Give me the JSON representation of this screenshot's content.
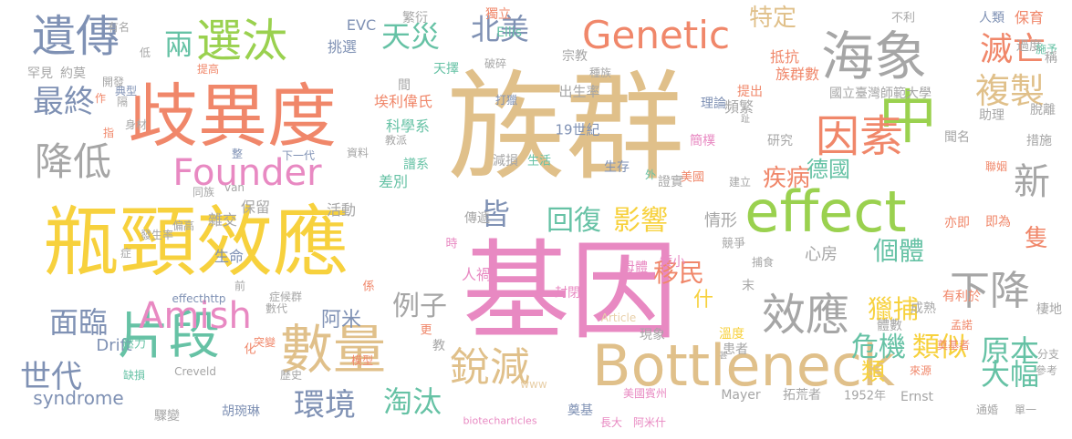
{
  "colors": {
    "tan": "#e0c08a",
    "coral": "#f0876a",
    "yellow": "#f7d13d",
    "green": "#9ad14f",
    "pink": "#e889c2",
    "gray": "#a6a6a6",
    "teal": "#66c2a5",
    "slate": "#7f91b4",
    "mint": "#a6d8c2",
    "beige": "#e8cfa8"
  },
  "words": [
    {
      "text": "族群",
      "color": "tan"
    },
    {
      "text": "基因",
      "color": "pink"
    },
    {
      "text": "瓶頸效應",
      "color": "yellow"
    },
    {
      "text": "歧異度",
      "color": "coral"
    },
    {
      "text": "effect",
      "color": "green"
    },
    {
      "text": "Bottleneck",
      "color": "tan"
    },
    {
      "text": "數量",
      "color": "tan"
    },
    {
      "text": "海象",
      "color": "gray"
    },
    {
      "text": "中",
      "color": "green"
    },
    {
      "text": "因素",
      "color": "coral"
    },
    {
      "text": "Genetic",
      "color": "coral"
    },
    {
      "text": "效應",
      "color": "gray"
    },
    {
      "text": "片段",
      "color": "teal"
    },
    {
      "text": "Founder",
      "color": "pink"
    },
    {
      "text": "選汰",
      "color": "green"
    },
    {
      "text": "遺傳",
      "color": "slate"
    },
    {
      "text": "降低",
      "color": "gray"
    },
    {
      "text": "Amish",
      "color": "pink"
    },
    {
      "text": "銳減",
      "color": "tan"
    },
    {
      "text": "下降",
      "color": "gray"
    },
    {
      "text": "複製",
      "color": "tan"
    },
    {
      "text": "最終",
      "color": "slate"
    },
    {
      "text": "新",
      "color": "gray"
    },
    {
      "text": "滅亡",
      "color": "coral"
    },
    {
      "text": "兩",
      "color": "teal"
    },
    {
      "text": "天災",
      "color": "teal"
    },
    {
      "text": "北美",
      "color": "slate"
    },
    {
      "text": "特定",
      "color": "tan"
    },
    {
      "text": "世代",
      "color": "slate"
    },
    {
      "text": "環境",
      "color": "slate"
    },
    {
      "text": "面臨",
      "color": "slate"
    },
    {
      "text": "淘汰",
      "color": "teal"
    },
    {
      "text": "大幅",
      "color": "teal"
    },
    {
      "text": "原本",
      "color": "teal"
    },
    {
      "text": "危機",
      "color": "teal"
    },
    {
      "text": "類似",
      "color": "yellow"
    },
    {
      "text": "影響",
      "color": "yellow"
    },
    {
      "text": "回復",
      "color": "teal"
    },
    {
      "text": "皆",
      "color": "slate"
    },
    {
      "text": "例子",
      "color": "gray"
    },
    {
      "text": "疾病",
      "color": "coral"
    },
    {
      "text": "德國",
      "color": "teal"
    },
    {
      "text": "獵捕",
      "color": "yellow"
    },
    {
      "text": "個體",
      "color": "teal"
    },
    {
      "text": "移民",
      "color": "coral"
    },
    {
      "text": "隻",
      "color": "coral"
    },
    {
      "text": "阿米",
      "color": "slate"
    },
    {
      "text": "syndrome",
      "color": "slate"
    },
    {
      "text": "Drift",
      "color": "slate"
    },
    {
      "text": "類",
      "color": "yellow"
    },
    {
      "text": "情形",
      "color": "gray"
    },
    {
      "text": "什",
      "color": "yellow"
    },
    {
      "text": "心房",
      "color": "gray"
    },
    {
      "text": "活動",
      "color": "gray"
    },
    {
      "text": "雜交",
      "color": "gray"
    },
    {
      "text": "生命",
      "color": "slate"
    },
    {
      "text": "保留",
      "color": "gray"
    },
    {
      "text": "傳遞",
      "color": "gray"
    },
    {
      "text": "差別",
      "color": "teal"
    },
    {
      "text": "譜系",
      "color": "teal"
    },
    {
      "text": "科學系",
      "color": "teal"
    },
    {
      "text": "19世紀",
      "color": "slate"
    },
    {
      "text": "出生率",
      "color": "gray"
    },
    {
      "text": "國立臺灣師範大學",
      "color": "gray"
    },
    {
      "text": "頻繁",
      "color": "gray"
    },
    {
      "text": "助理",
      "color": "gray"
    },
    {
      "text": "研究",
      "color": "gray"
    },
    {
      "text": "簡樸",
      "color": "pink"
    },
    {
      "text": "理論",
      "color": "slate"
    },
    {
      "text": "族群數",
      "color": "coral"
    },
    {
      "text": "抵抗",
      "color": "coral"
    },
    {
      "text": "提出",
      "color": "coral"
    },
    {
      "text": "人類",
      "color": "slate"
    },
    {
      "text": "保育",
      "color": "coral"
    },
    {
      "text": "過度",
      "color": "gray"
    },
    {
      "text": "施予",
      "color": "teal"
    },
    {
      "text": "稱",
      "color": "gray"
    },
    {
      "text": "脫離",
      "color": "gray"
    },
    {
      "text": "措施",
      "color": "gray"
    },
    {
      "text": "聞名",
      "color": "gray"
    },
    {
      "text": "聯姻",
      "color": "coral"
    },
    {
      "text": "亦即",
      "color": "coral"
    },
    {
      "text": "即為",
      "color": "coral"
    },
    {
      "text": "有利於",
      "color": "coral"
    },
    {
      "text": "成熟",
      "color": "gray"
    },
    {
      "text": "孟諾",
      "color": "coral"
    },
    {
      "text": "棲地",
      "color": "gray"
    },
    {
      "text": "分支",
      "color": "gray"
    },
    {
      "text": "參考",
      "color": "gray"
    },
    {
      "text": "奠基者",
      "color": "coral"
    },
    {
      "text": "體數",
      "color": "gray"
    },
    {
      "text": "來源",
      "color": "coral"
    },
    {
      "text": "Ernst",
      "color": "gray"
    },
    {
      "text": "通婚",
      "color": "gray"
    },
    {
      "text": "單一",
      "color": "gray"
    },
    {
      "text": "1952年",
      "color": "gray"
    },
    {
      "text": "拓荒者",
      "color": "gray"
    },
    {
      "text": "Mayer",
      "color": "gray"
    },
    {
      "text": "美國賓州",
      "color": "pink"
    },
    {
      "text": "長大",
      "color": "pink"
    },
    {
      "text": "阿米什",
      "color": "pink"
    },
    {
      "text": "奠基",
      "color": "slate"
    },
    {
      "text": "biotecharticles",
      "color": "pink"
    },
    {
      "text": "胡琬琳",
      "color": "slate"
    },
    {
      "text": "驟變",
      "color": "gray"
    },
    {
      "text": "歷史",
      "color": "gray"
    },
    {
      "text": "缺損",
      "color": "teal"
    },
    {
      "text": "壓力",
      "color": "teal"
    },
    {
      "text": "Creveld",
      "color": "gray"
    },
    {
      "text": "化",
      "color": "coral"
    },
    {
      "text": "突變",
      "color": "coral"
    },
    {
      "text": "數代",
      "color": "gray"
    },
    {
      "text": "症候群",
      "color": "gray"
    },
    {
      "text": "effecthttp",
      "color": "slate"
    },
    {
      "text": "係",
      "color": "coral"
    },
    {
      "text": "前",
      "color": "gray"
    },
    {
      "text": "末",
      "color": "gray"
    },
    {
      "text": "競爭",
      "color": "gray"
    },
    {
      "text": "捕食",
      "color": "gray"
    },
    {
      "text": "建立",
      "color": "gray"
    },
    {
      "text": "美國",
      "color": "coral"
    },
    {
      "text": "證實",
      "color": "gray"
    },
    {
      "text": "外",
      "color": "teal"
    },
    {
      "text": "生存",
      "color": "slate"
    },
    {
      "text": "生活",
      "color": "teal"
    },
    {
      "text": "減損",
      "color": "gray"
    },
    {
      "text": "教派",
      "color": "gray"
    },
    {
      "text": "資料",
      "color": "gray"
    },
    {
      "text": "下一代",
      "color": "slate"
    },
    {
      "text": "整",
      "color": "slate"
    },
    {
      "text": "打獵",
      "color": "slate"
    },
    {
      "text": "作",
      "color": "coral"
    },
    {
      "text": "指",
      "color": "coral"
    },
    {
      "text": "隔",
      "color": "gray"
    },
    {
      "text": "典型",
      "color": "slate"
    },
    {
      "text": "開發",
      "color": "gray"
    },
    {
      "text": "約莫",
      "color": "gray"
    },
    {
      "text": "罕見",
      "color": "gray"
    },
    {
      "text": "低",
      "color": "gray"
    },
    {
      "text": "提高",
      "color": "coral"
    },
    {
      "text": "挑選",
      "color": "slate"
    },
    {
      "text": "EVC",
      "color": "slate"
    },
    {
      "text": "繁衍",
      "color": "gray"
    },
    {
      "text": "獨立",
      "color": "coral"
    },
    {
      "text": "Ellis",
      "color": "teal"
    },
    {
      "text": "有名",
      "color": "gray"
    },
    {
      "text": "破碎",
      "color": "gray"
    },
    {
      "text": "宗教",
      "color": "gray"
    },
    {
      "text": "種族",
      "color": "gray"
    },
    {
      "text": "間",
      "color": "gray"
    },
    {
      "text": "天擇",
      "color": "teal"
    },
    {
      "text": "埃利偉氏",
      "color": "coral"
    },
    {
      "text": "不利",
      "color": "gray"
    },
    {
      "text": "封閉",
      "color": "pink"
    },
    {
      "text": "母體",
      "color": "pink"
    },
    {
      "text": "矮小",
      "color": "pink"
    },
    {
      "text": "時",
      "color": "pink"
    },
    {
      "text": "人禍",
      "color": "pink"
    },
    {
      "text": "更",
      "color": "coral"
    },
    {
      "text": "教",
      "color": "gray"
    },
    {
      "text": "模型",
      "color": "coral"
    },
    {
      "text": "現象",
      "color": "gray"
    },
    {
      "text": "溫度",
      "color": "yellow"
    },
    {
      "text": "患者",
      "color": "gray"
    },
    {
      "text": "Article",
      "color": "beige"
    },
    {
      "text": "www",
      "color": "beige"
    },
    {
      "text": "甚",
      "color": "gray"
    },
    {
      "text": "van",
      "color": "gray"
    },
    {
      "text": "同族",
      "color": "gray"
    },
    {
      "text": "偏高",
      "color": "gray"
    },
    {
      "text": "發生率",
      "color": "gray"
    },
    {
      "text": "症",
      "color": "gray"
    },
    {
      "text": "身材",
      "color": "gray"
    },
    {
      "text": "趾",
      "color": "gray"
    }
  ]
}
